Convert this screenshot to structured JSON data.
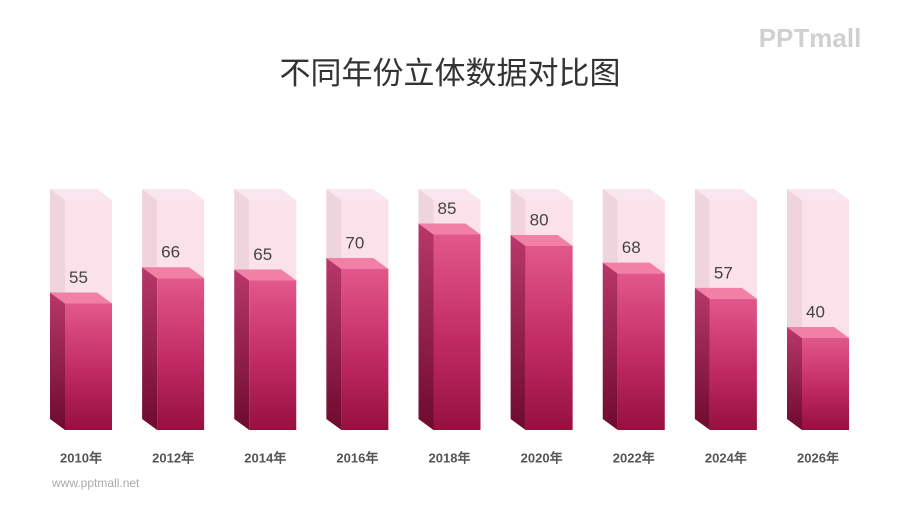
{
  "chart_data": {
    "type": "bar3d",
    "title": "不同年份立体数据对比图",
    "categories": [
      "2010年",
      "2012年",
      "2014年",
      "2016年",
      "2018年",
      "2020年",
      "2022年",
      "2024年",
      "2026年"
    ],
    "values": [
      55,
      66,
      65,
      70,
      85,
      80,
      68,
      57,
      40
    ],
    "ylim": [
      0,
      100
    ]
  },
  "logo": "PPTmall",
  "footer": "www.pptmall.net"
}
